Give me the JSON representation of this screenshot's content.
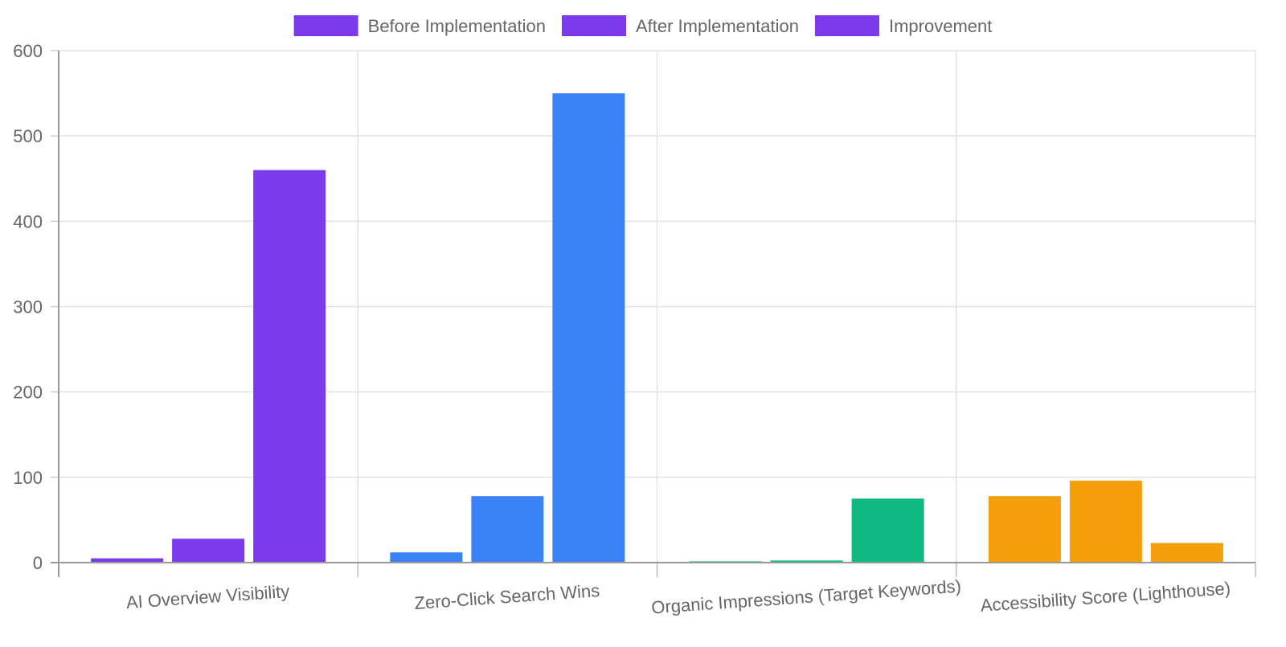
{
  "chart_data": {
    "type": "bar",
    "categories": [
      "AI Overview Visibility",
      "Zero-Click Search Wins",
      "Organic Impressions (Target Keywords)",
      "Accessibility Score (Lighthouse)"
    ],
    "series": [
      {
        "name": "Before Implementation",
        "values": [
          5,
          12,
          1.5,
          78
        ]
      },
      {
        "name": "After Implementation",
        "values": [
          28,
          78,
          2.5,
          96
        ]
      },
      {
        "name": "Improvement",
        "values": [
          460,
          550,
          75,
          23
        ]
      }
    ],
    "category_colors": [
      "#7c3aed",
      "#3b82f6",
      "#10b981",
      "#f59e0b"
    ],
    "legend_color": "#7c3aed",
    "legend_position": "top-center",
    "yticks": [
      0,
      100,
      200,
      300,
      400,
      500,
      600
    ],
    "ylim": [
      0,
      600
    ],
    "grid": true,
    "title": "",
    "xlabel": "",
    "ylabel": ""
  }
}
